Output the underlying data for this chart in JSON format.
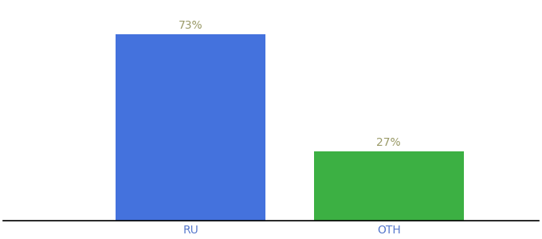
{
  "categories": [
    "RU",
    "OTH"
  ],
  "values": [
    73,
    27
  ],
  "bar_colors": [
    "#4472DD",
    "#3CB043"
  ],
  "label_color": "#999966",
  "tick_color": "#5577CC",
  "background_color": "#ffffff",
  "ylim": [
    0,
    85
  ],
  "bar_width": 0.28,
  "label_fontsize": 10,
  "tick_fontsize": 10
}
